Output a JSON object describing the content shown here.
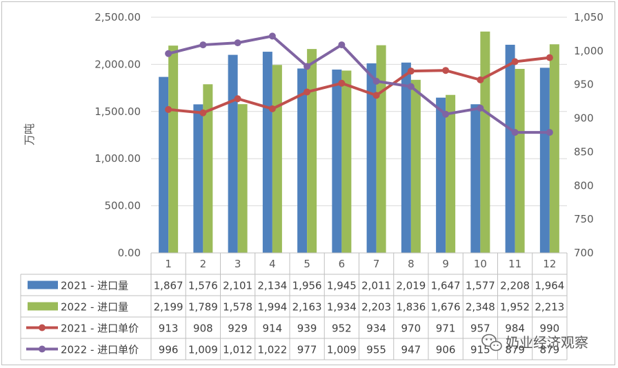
{
  "chart_data": {
    "type": "bar",
    "categories": [
      "1",
      "2",
      "3",
      "4",
      "5",
      "6",
      "7",
      "8",
      "9",
      "10",
      "11",
      "12"
    ],
    "series": [
      {
        "name": "2021 - 进口量",
        "kind": "bar",
        "axis": "left",
        "color": "#4f81bd",
        "values": [
          1867,
          1576,
          2101,
          2134,
          1956,
          1945,
          2011,
          2019,
          1647,
          1577,
          2208,
          1964
        ],
        "labels": [
          "1,867",
          "1,576",
          "2,101",
          "2,134",
          "1,956",
          "1,945",
          "2,011",
          "2,019",
          "1,647",
          "1,577",
          "2,208",
          "1,964"
        ]
      },
      {
        "name": "2022 - 进口量",
        "kind": "bar",
        "axis": "left",
        "color": "#9bbb59",
        "values": [
          2199,
          1789,
          1578,
          1994,
          2163,
          1934,
          2203,
          1836,
          1676,
          2348,
          1952,
          2213
        ],
        "labels": [
          "2,199",
          "1,789",
          "1,578",
          "1,994",
          "2,163",
          "1,934",
          "2,203",
          "1,836",
          "1,676",
          "2,348",
          "1,952",
          "2,213"
        ]
      },
      {
        "name": "2021 - 进口单价",
        "kind": "line",
        "axis": "right",
        "color": "#c0504d",
        "values": [
          913,
          908,
          929,
          914,
          939,
          952,
          934,
          970,
          971,
          957,
          984,
          990
        ],
        "labels": [
          "913",
          "908",
          "929",
          "914",
          "939",
          "952",
          "934",
          "970",
          "971",
          "957",
          "984",
          "990"
        ]
      },
      {
        "name": "2022 - 进口单价",
        "kind": "line",
        "axis": "right",
        "color": "#8064a2",
        "values": [
          996,
          1009,
          1012,
          1022,
          977,
          1009,
          955,
          947,
          906,
          915,
          879,
          879
        ],
        "labels": [
          "996",
          "1,009",
          "1,012",
          "1,022",
          "977",
          "1,009",
          "955",
          "947",
          "906",
          "915",
          "879",
          "879"
        ]
      }
    ],
    "ylabel": "万吨",
    "ylim": [
      0,
      2500
    ],
    "y2lim": [
      700,
      1050
    ],
    "yticks": [
      0,
      500,
      1000,
      1500,
      2000,
      2500
    ],
    "yticklabels": [
      "0.00",
      "500.00",
      "1,000.00",
      "1,500.00",
      "2,000.00",
      "2,500.00"
    ],
    "y2ticks": [
      700,
      750,
      800,
      850,
      900,
      950,
      1000,
      1050
    ],
    "y2ticklabels": [
      "700",
      "750",
      "800",
      "850",
      "900",
      "950",
      "1,000",
      "1,050"
    ],
    "grid": "horizontal",
    "legend": "data-table"
  },
  "watermark": {
    "text": "奶业经济观察",
    "icon": "wechat-icon"
  },
  "colors": {
    "grid": "#d9d9d9",
    "axis_text": "#595959",
    "table_border": "#bfbfbf"
  }
}
